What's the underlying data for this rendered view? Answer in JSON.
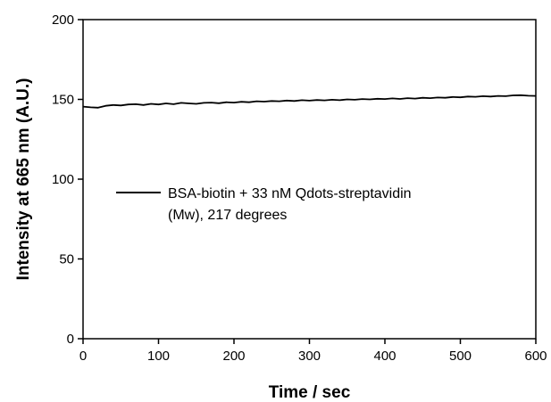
{
  "chart_data": {
    "type": "line",
    "title": "",
    "xlabel": "Time / sec",
    "ylabel": "Intensity at 665 nm (A.U.)",
    "xlim": [
      0,
      600
    ],
    "ylim": [
      0,
      200
    ],
    "xticks": [
      0,
      100,
      200,
      300,
      400,
      500,
      600
    ],
    "yticks": [
      0,
      50,
      100,
      150,
      200
    ],
    "grid": false,
    "legend": {
      "placement": "center-left",
      "lines": [
        "BSA-biotin + 33 nM Qdots-streptavidin",
        "(Mw),  217 degrees"
      ]
    },
    "series": [
      {
        "name": "BSA-biotin + 33 nM Qdots-streptavidin (Mw),  217 degrees",
        "color": "#000000",
        "x": [
          0,
          10,
          20,
          30,
          40,
          50,
          60,
          70,
          80,
          90,
          100,
          110,
          120,
          130,
          140,
          150,
          160,
          170,
          180,
          190,
          200,
          210,
          220,
          230,
          240,
          250,
          260,
          270,
          280,
          290,
          300,
          310,
          320,
          330,
          340,
          350,
          360,
          370,
          380,
          390,
          400,
          410,
          420,
          430,
          440,
          450,
          460,
          470,
          480,
          490,
          500,
          510,
          520,
          530,
          540,
          550,
          560,
          570,
          580,
          590,
          600
        ],
        "y": [
          145.5,
          145.0,
          144.8,
          146.0,
          146.5,
          146.2,
          146.8,
          147.0,
          146.5,
          147.2,
          146.8,
          147.5,
          147.0,
          147.8,
          147.5,
          147.2,
          147.8,
          148.0,
          147.6,
          148.2,
          148.0,
          148.5,
          148.2,
          148.8,
          148.6,
          149.0,
          148.8,
          149.3,
          149.0,
          149.5,
          149.2,
          149.6,
          149.4,
          149.8,
          149.5,
          150.0,
          149.8,
          150.2,
          150.0,
          150.4,
          150.2,
          150.6,
          150.3,
          150.8,
          150.5,
          151.0,
          150.8,
          151.2,
          151.0,
          151.5,
          151.3,
          151.8,
          151.6,
          152.0,
          151.8,
          152.2,
          152.0,
          152.5,
          152.6,
          152.3,
          152.2
        ]
      }
    ]
  }
}
